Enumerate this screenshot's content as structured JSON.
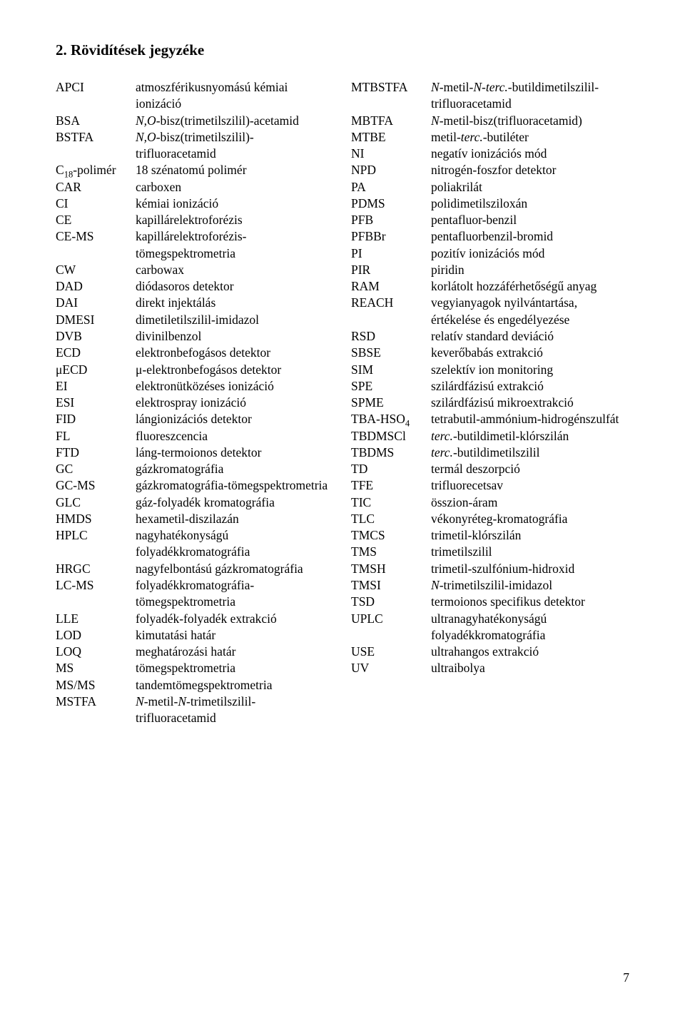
{
  "title": "2. Rövidítések jegyzéke",
  "page_number": "7",
  "left": [
    {
      "abbr": "APCI",
      "def": "atmoszférikusnyomású kémiai ionizáció"
    },
    {
      "abbr": "BSA",
      "def": "<i>N,O</i>-bisz(trimetilszilil)-acetamid"
    },
    {
      "abbr": "BSTFA",
      "def": "<i>N,O</i>-bisz(trimetilszilil)-trifluoracetamid"
    },
    {
      "abbr": "C<sub>18</sub>-polimér",
      "def": "18 szénatomú polimér"
    },
    {
      "abbr": "CAR",
      "def": "carboxen"
    },
    {
      "abbr": "CI",
      "def": "kémiai ionizáció"
    },
    {
      "abbr": "CE",
      "def": "kapillárelektroforézis"
    },
    {
      "abbr": "CE-MS",
      "def": "kapillárelektroforézis-tömegspektrometria"
    },
    {
      "abbr": "CW",
      "def": "carbowax"
    },
    {
      "abbr": "DAD",
      "def": "diódasoros detektor"
    },
    {
      "abbr": "DAI",
      "def": "direkt injektálás"
    },
    {
      "abbr": "DMESI",
      "def": "dimetiletilszilil-imidazol"
    },
    {
      "abbr": "DVB",
      "def": "divinilbenzol"
    },
    {
      "abbr": "ECD",
      "def": "elektronbefogásos detektor"
    },
    {
      "abbr": "μECD",
      "def": "μ-elektronbefogásos detektor"
    },
    {
      "abbr": "EI",
      "def": "elektronütközéses ionizáció"
    },
    {
      "abbr": "ESI",
      "def": "elektrospray ionizáció"
    },
    {
      "abbr": "FID",
      "def": "lángionizációs detektor"
    },
    {
      "abbr": "FL",
      "def": "fluoreszcencia"
    },
    {
      "abbr": "FTD",
      "def": "láng-termoionos detektor"
    },
    {
      "abbr": "GC",
      "def": "gázkromatográfia"
    },
    {
      "abbr": "GC-MS",
      "def": "gázkromatográfia-tömegspektrometria"
    },
    {
      "abbr": "GLC",
      "def": "gáz-folyadék kromatográfia"
    },
    {
      "abbr": "HMDS",
      "def": "hexametil-diszilazán"
    },
    {
      "abbr": "HPLC",
      "def": "nagyhatékonyságú folyadékkromatográfia"
    },
    {
      "abbr": "HRGC",
      "def": "nagyfelbontású gázkromatográfia"
    },
    {
      "abbr": "LC-MS",
      "def": "folyadékkromatográfia-tömegspektrometria"
    },
    {
      "abbr": "LLE",
      "def": "folyadék-folyadék extrakció"
    },
    {
      "abbr": "LOD",
      "def": "kimutatási határ"
    },
    {
      "abbr": "LOQ",
      "def": "meghatározási határ"
    },
    {
      "abbr": "MS",
      "def": "tömegspektrometria"
    },
    {
      "abbr": "MS/MS",
      "def": "tandemtömegspektrometria"
    },
    {
      "abbr": "MSTFA",
      "def": "<i>N</i>-metil-<i>N</i>-trimetilszilil-trifluoracetamid"
    }
  ],
  "right": [
    {
      "abbr": "MTBSTFA",
      "def": "<i>N</i>-metil-<i>N</i>-<i>terc.</i>-butildimetilszilil-trifluoracetamid"
    },
    {
      "abbr": "MBTFA",
      "def": "<i>N</i>-metil-bisz(trifluoracetamid)"
    },
    {
      "abbr": "MTBE",
      "def": "metil-<i>terc.</i>-butiléter"
    },
    {
      "abbr": "NI",
      "def": "negatív ionizációs mód"
    },
    {
      "abbr": "NPD",
      "def": "nitrogén-foszfor detektor"
    },
    {
      "abbr": "PA",
      "def": "poliakrilát"
    },
    {
      "abbr": "PDMS",
      "def": "polidimetilsziloxán"
    },
    {
      "abbr": "PFB",
      "def": "pentafluor-benzil"
    },
    {
      "abbr": "PFBBr",
      "def": "pentafluorbenzil-bromid"
    },
    {
      "abbr": "PI",
      "def": "pozitív ionizációs mód"
    },
    {
      "abbr": "PIR",
      "def": "piridin"
    },
    {
      "abbr": "RAM",
      "def": "korlátolt hozzáférhetőségű anyag"
    },
    {
      "abbr": "REACH",
      "def": "vegyianyagok nyilvántartása, értékelése és engedélyezése"
    },
    {
      "abbr": "RSD",
      "def": "relatív standard deviáció"
    },
    {
      "abbr": "SBSE",
      "def": "keverőbabás extrakció"
    },
    {
      "abbr": "SIM",
      "def": "szelektív ion monitoring"
    },
    {
      "abbr": "SPE",
      "def": "szilárdfázisú extrakció"
    },
    {
      "abbr": "SPME",
      "def": "szilárdfázisú mikroextrakció"
    },
    {
      "abbr": "TBA-HSO<sub>4</sub>",
      "def": "tetrabutil-ammónium-hidrogénszulfát"
    },
    {
      "abbr": "TBDMSCl",
      "def": "<i>terc.</i>-butildimetil-klórszilán"
    },
    {
      "abbr": "TBDMS",
      "def": "<i>terc.</i>-butildimetilszilil"
    },
    {
      "abbr": "TD",
      "def": "termál deszorpció"
    },
    {
      "abbr": "TFE",
      "def": "trifluorecetsav"
    },
    {
      "abbr": "TIC",
      "def": "összion-áram"
    },
    {
      "abbr": "TLC",
      "def": "vékonyréteg-kromatográfia"
    },
    {
      "abbr": "TMCS",
      "def": "trimetil-klórszilán"
    },
    {
      "abbr": "TMS",
      "def": "trimetilszilil"
    },
    {
      "abbr": "TMSH",
      "def": "trimetil-szulfónium-hidroxid"
    },
    {
      "abbr": "TMSI",
      "def": "<i>N</i>-trimetilszilil-imidazol"
    },
    {
      "abbr": "TSD",
      "def": "termoionos specifikus detektor"
    },
    {
      "abbr": "UPLC",
      "def": "ultranagyhatékonyságú folyadékkromatográfia"
    },
    {
      "abbr": "USE",
      "def": "ultrahangos extrakció"
    },
    {
      "abbr": "UV",
      "def": "ultraibolya"
    }
  ]
}
